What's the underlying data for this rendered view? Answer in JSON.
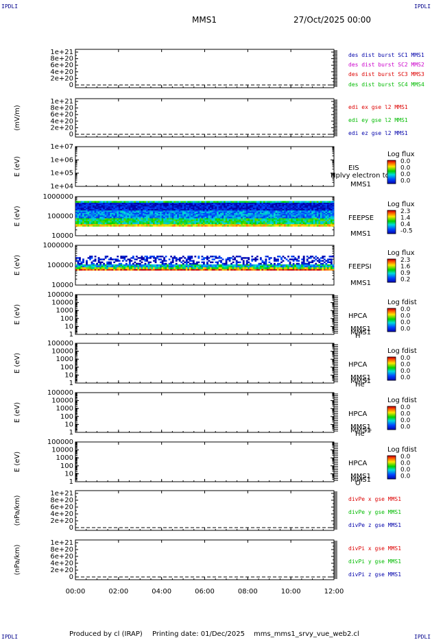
{
  "header": {
    "corner_tl": "IPDLI",
    "corner_tr": "IPDLI",
    "corner_bl": "IPDLI",
    "corner_br": "IPDLI",
    "spacecraft": "MMS1",
    "date": "27/Oct/2025 00:00"
  },
  "footer": {
    "produced": "Produced by cl (IRAP)",
    "printing": "Printing date: 01/Dec/2025",
    "file": "mms_mms1_srvy_vue_web2.cl"
  },
  "colors": {
    "mms1": "#0000aa",
    "mms2": "#cc00cc",
    "mms3": "#dd0000",
    "mms4": "#00bb00",
    "x": "#dd0000",
    "y": "#00bb00",
    "z": "#0000aa"
  },
  "panels": {
    "p1": {
      "yticks": [
        "1e+21",
        "8e+20",
        "6e+20",
        "4e+20",
        "2e+20",
        "0"
      ],
      "legend": [
        "des dist burst SC1 MMS1",
        "des dist burst SC2 MMS2",
        "des dist burst SC3 MMS3",
        "des dist burst SC4 MMS4"
      ]
    },
    "p2": {
      "ylabel": "(mV/m)",
      "yticks": [
        "1e+21",
        "8e+20",
        "6e+20",
        "4e+20",
        "2e+20",
        "0"
      ],
      "legend": [
        "edi ex gse l2 MMS1",
        "edi ey gse l2 MMS1",
        "edi ez gse l2 MMS1"
      ]
    },
    "p3": {
      "ylabel": "E (eV)",
      "yticks": [
        "1e+07",
        "1e+06",
        "1e+05",
        "1e+04"
      ],
      "inst": "EIS",
      "overlay": "Hplvy electron to",
      "sc": "MMS1",
      "cb_title": "Log flux",
      "cb_vals": [
        "0.0",
        "0.0",
        "0.0",
        "0.0"
      ]
    },
    "p4": {
      "ylabel": "E (eV)",
      "yticks": [
        "1000000",
        "100000",
        "10000"
      ],
      "inst": "FEEPSE",
      "sc": "MMS1",
      "cb_title": "Log flux",
      "cb_vals": [
        "2.3",
        "1.4",
        "0.4",
        "-0.5"
      ]
    },
    "p5": {
      "ylabel": "E (eV)",
      "yticks": [
        "1000000",
        "100000",
        "10000"
      ],
      "inst": "FEEPSI",
      "sc": "MMS1",
      "cb_title": "Log flux",
      "cb_vals": [
        "2.3",
        "1.6",
        "0.9",
        "0.2"
      ]
    },
    "p6": {
      "ylabel": "E (eV)",
      "yticks": [
        "100000",
        "10000",
        "1000",
        "100",
        "10",
        "1"
      ],
      "inst": "HPCA",
      "sc": "MMS1",
      "species": "H",
      "charge": "+",
      "cb_title": "Log fdist",
      "cb_vals": [
        "0.0",
        "0.0",
        "0.0",
        "0.0"
      ]
    },
    "p7": {
      "ylabel": "E (eV)",
      "yticks": [
        "100000",
        "10000",
        "1000",
        "100",
        "10",
        "1"
      ],
      "inst": "HPCA",
      "sc": "MMS1",
      "species": "He",
      "charge": "+",
      "cb_title": "Log fdist",
      "cb_vals": [
        "0.0",
        "0.0",
        "0.0",
        "0.0"
      ]
    },
    "p8": {
      "ylabel": "E (eV)",
      "yticks": [
        "100000",
        "10000",
        "1000",
        "100",
        "10",
        "1"
      ],
      "inst": "HPCA",
      "sc": "MMS1",
      "species": "He",
      "charge": "++",
      "cb_title": "Log fdist",
      "cb_vals": [
        "0.0",
        "0.0",
        "0.0",
        "0.0"
      ]
    },
    "p9": {
      "ylabel": "E (eV)",
      "yticks": [
        "100000",
        "10000",
        "1000",
        "100",
        "10",
        "1"
      ],
      "inst": "HPCA",
      "sc": "MMS1",
      "species": "O",
      "charge": "+",
      "cb_title": "Log fdist",
      "cb_vals": [
        "0.0",
        "0.0",
        "0.0",
        "0.0"
      ]
    },
    "p10": {
      "ylabel": "(nPa/km)",
      "yticks": [
        "1e+21",
        "8e+20",
        "6e+20",
        "4e+20",
        "2e+20",
        "0"
      ],
      "legend": [
        "divPe x gse MMS1",
        "divPe y gse MMS1",
        "divPe z gse MMS1"
      ]
    },
    "p11": {
      "ylabel": "(nPa/km)",
      "yticks": [
        "1e+21",
        "8e+20",
        "6e+20",
        "4e+20",
        "2e+20",
        "0"
      ],
      "legend": [
        "divPi x gse MMS1",
        "divPi y gse MMS1",
        "divPi z gse MMS1"
      ]
    }
  },
  "chart_data": {
    "type": "heatmap",
    "xlabel": "",
    "xticks": [
      "00:00",
      "02:00",
      "04:00",
      "06:00",
      "08:00",
      "10:00",
      "12:00"
    ],
    "xlim": [
      "00:00",
      "12:00"
    ],
    "line_panels": [
      {
        "panel": 1,
        "ylim": [
          0,
          1e+21
        ],
        "series": [
          {
            "name": "des dist burst SC1 MMS1",
            "values": []
          },
          {
            "name": "des dist burst SC2 MMS2",
            "values": []
          },
          {
            "name": "des dist burst SC3 MMS3",
            "values": []
          },
          {
            "name": "des dist burst SC4 MMS4",
            "values": []
          }
        ]
      },
      {
        "panel": 2,
        "ylim": [
          0,
          1e+21
        ],
        "series": [
          {
            "name": "edi ex gse l2 MMS1",
            "values": []
          },
          {
            "name": "edi ey gse l2 MMS1",
            "values": []
          },
          {
            "name": "edi ez gse l2 MMS1",
            "values": []
          }
        ]
      },
      {
        "panel": 10,
        "ylim": [
          0,
          1e+21
        ],
        "series": [
          {
            "name": "divPe x gse MMS1",
            "values": []
          },
          {
            "name": "divPe y gse MMS1",
            "values": []
          },
          {
            "name": "divPe z gse MMS1",
            "values": []
          }
        ]
      },
      {
        "panel": 11,
        "ylim": [
          0,
          1e+21
        ],
        "series": [
          {
            "name": "divPi x gse MMS1",
            "values": []
          },
          {
            "name": "divPi y gse MMS1",
            "values": []
          },
          {
            "name": "divPi z gse MMS1",
            "values": []
          }
        ]
      }
    ],
    "spectrograms": [
      {
        "panel": 3,
        "instrument": "EIS",
        "yscale": "log",
        "ylim": [
          10000,
          10000000
        ],
        "zlim": [
          0.0,
          0.0
        ],
        "bands": []
      },
      {
        "panel": 4,
        "instrument": "FEEPSE",
        "yscale": "log",
        "ylim": [
          10000,
          1000000
        ],
        "zlim": [
          -0.5,
          2.3
        ],
        "bands": [
          {
            "e_low": 30000,
            "e_high": 40000,
            "level": 1.6
          },
          {
            "e_low": 40000,
            "e_high": 80000,
            "level": 0.9
          },
          {
            "e_low": 80000,
            "e_high": 200000,
            "level": 0.3
          },
          {
            "e_low": 200000,
            "e_high": 500000,
            "level": -0.3
          },
          {
            "e_low": 500000,
            "e_high": 600000,
            "level": 0.8
          }
        ]
      },
      {
        "panel": 5,
        "instrument": "FEEPSI",
        "yscale": "log",
        "ylim": [
          10000,
          1000000
        ],
        "zlim": [
          0.2,
          2.3
        ],
        "bands": [
          {
            "e_low": 55000,
            "e_high": 65000,
            "level": 2.2
          },
          {
            "e_low": 65000,
            "e_high": 80000,
            "level": 1.5
          },
          {
            "e_low": 80000,
            "e_high": 110000,
            "level": 1.0
          },
          {
            "e_low": 110000,
            "e_high": 300000,
            "level": 0.3
          }
        ]
      },
      {
        "panel": 6,
        "instrument": "HPCA H+",
        "yscale": "log",
        "ylim": [
          1,
          100000
        ],
        "zlim": [
          0.0,
          0.0
        ],
        "bands": []
      },
      {
        "panel": 7,
        "instrument": "HPCA He+",
        "yscale": "log",
        "ylim": [
          1,
          100000
        ],
        "zlim": [
          0.0,
          0.0
        ],
        "bands": []
      },
      {
        "panel": 8,
        "instrument": "HPCA He++",
        "yscale": "log",
        "ylim": [
          1,
          100000
        ],
        "zlim": [
          0.0,
          0.0
        ],
        "bands": []
      },
      {
        "panel": 9,
        "instrument": "HPCA O+",
        "yscale": "log",
        "ylim": [
          1,
          100000
        ],
        "zlim": [
          0.0,
          0.0
        ],
        "bands": []
      }
    ]
  }
}
